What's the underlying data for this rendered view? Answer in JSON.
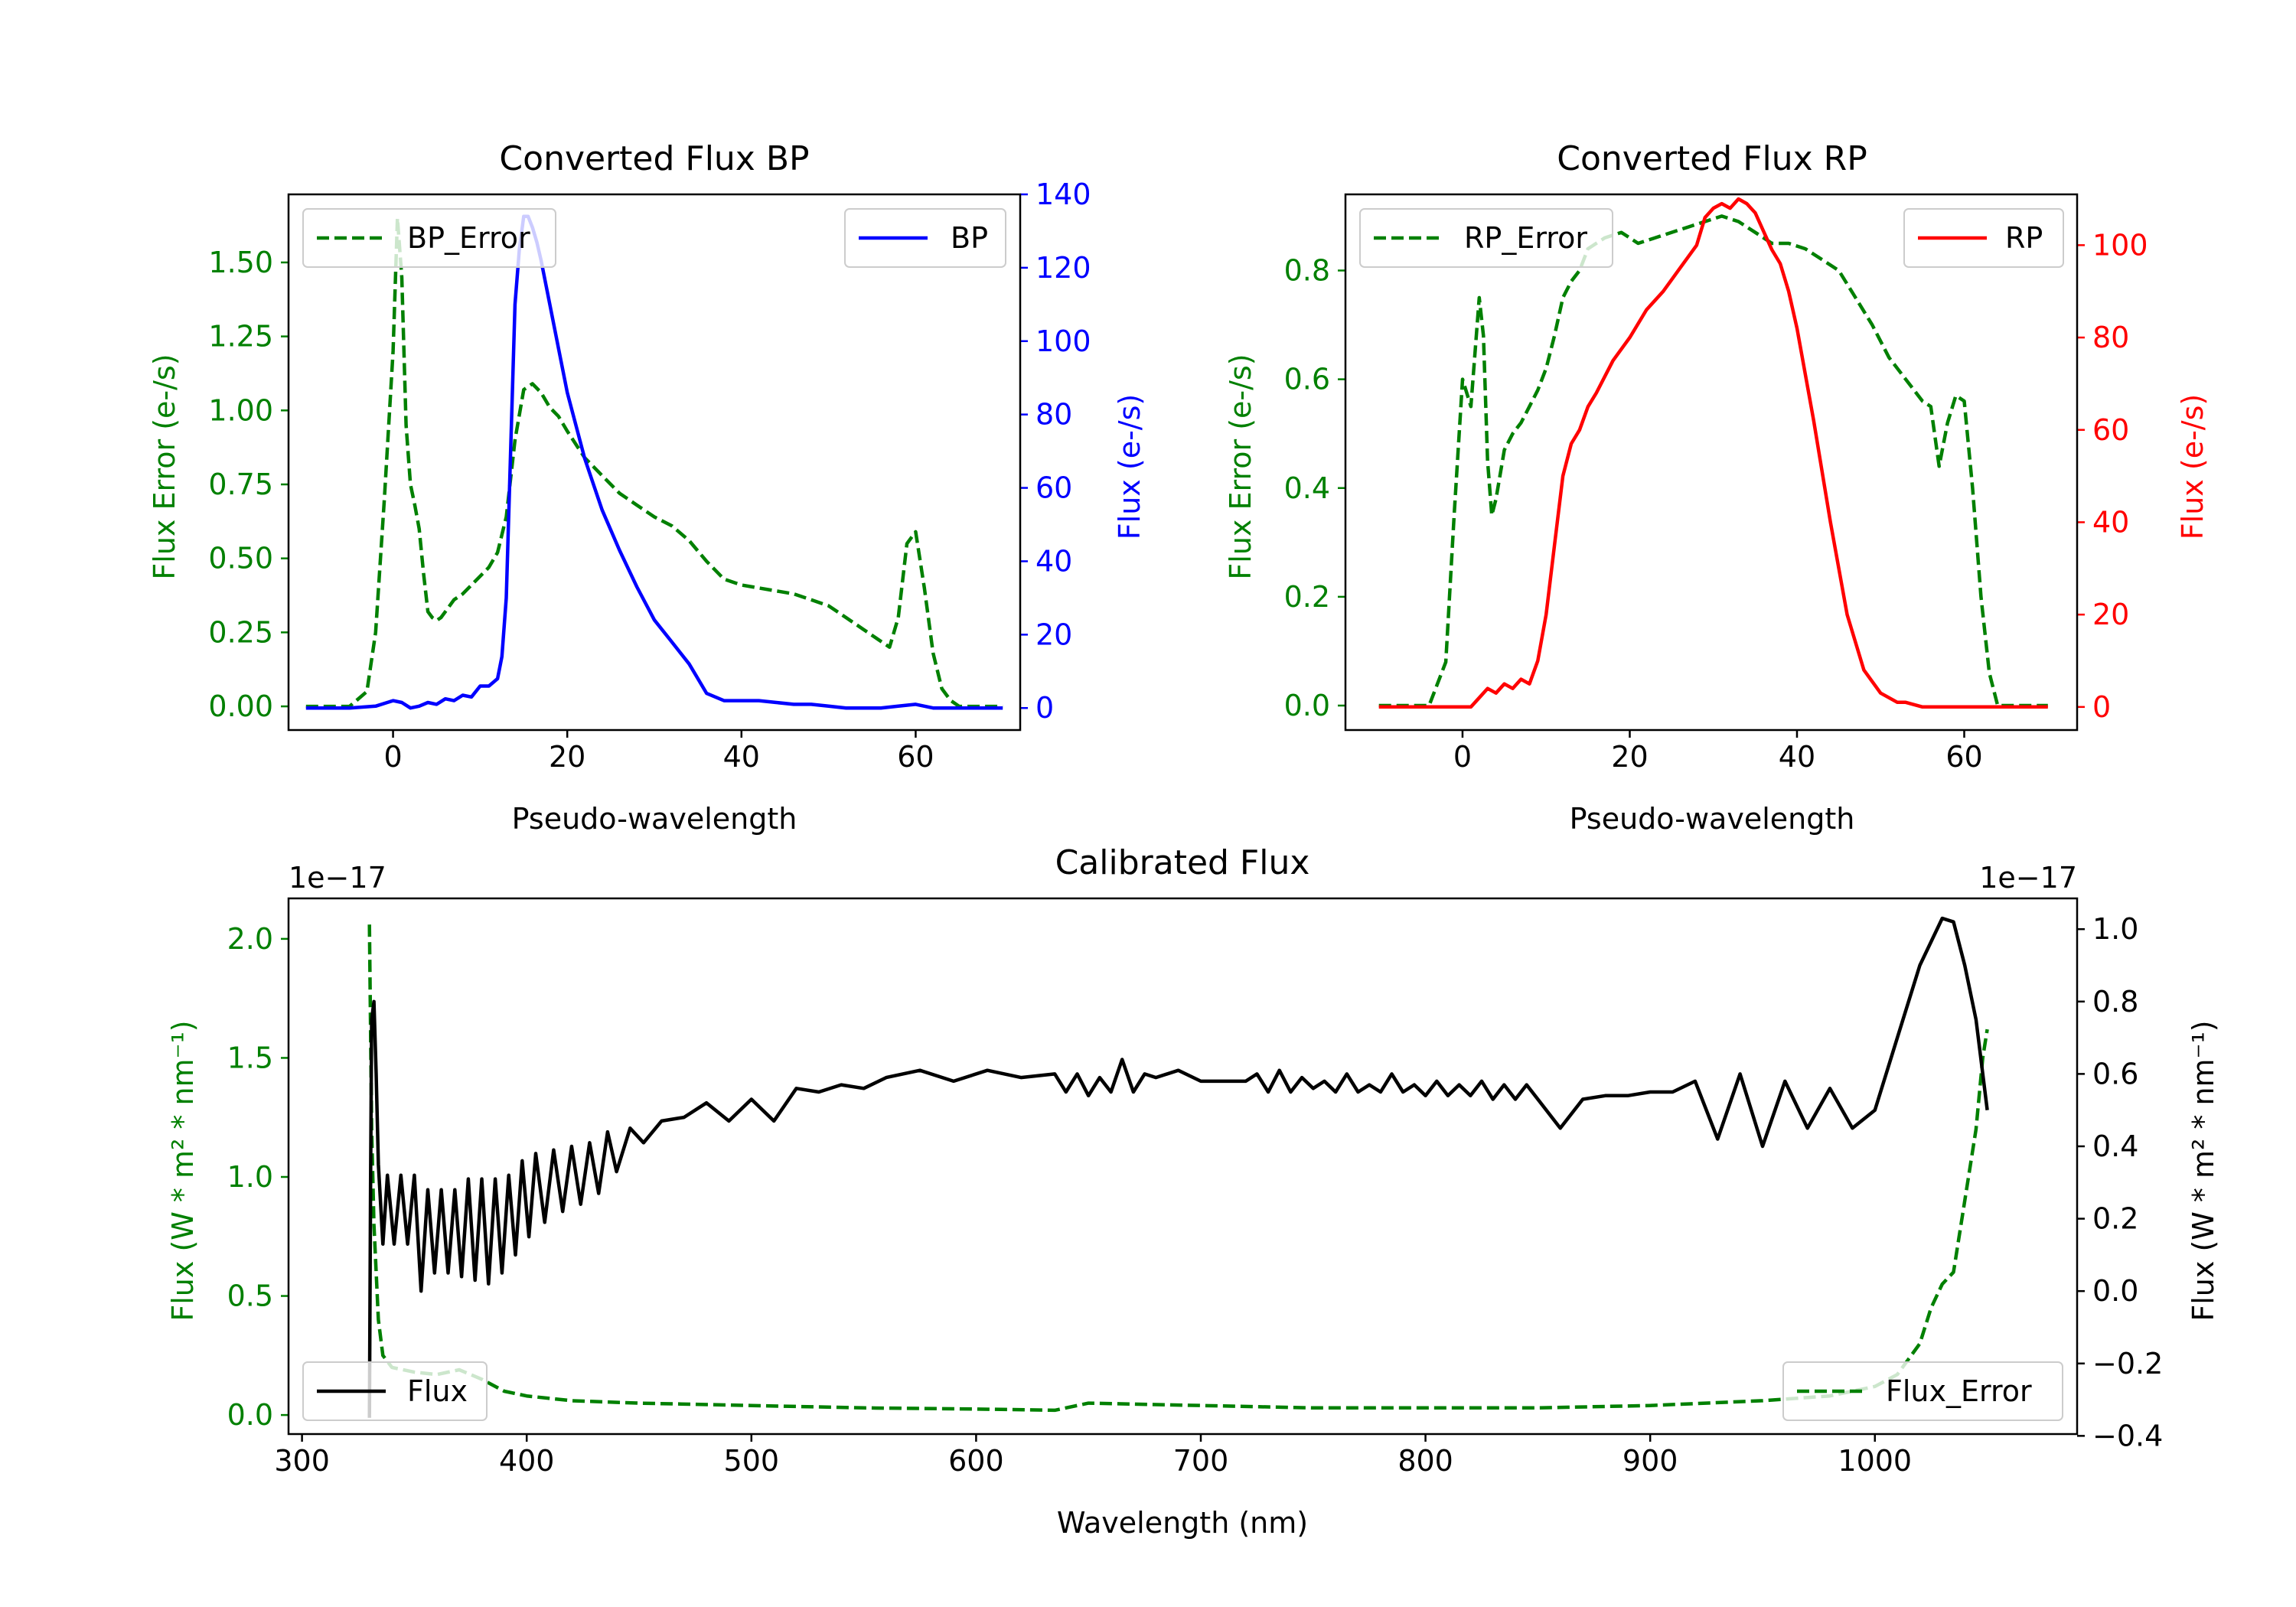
{
  "chart_data": [
    {
      "id": "bp",
      "type": "line",
      "title": "Converted Flux BP",
      "xlabel": "Pseudo-wavelength",
      "ylabel_left": "Flux Error (e-/s)",
      "ylabel_right": "Flux (e-/s)",
      "xlim": [
        -12,
        72
      ],
      "ylim_left": [
        -0.08,
        1.73
      ],
      "ylim_right": [
        -6,
        140
      ],
      "xticks": [
        0,
        20,
        40,
        60
      ],
      "yticks_left": [
        0.0,
        0.25,
        0.5,
        0.75,
        1.0,
        1.25,
        1.5
      ],
      "yticks_left_labels": [
        "0.00",
        "0.25",
        "0.50",
        "0.75",
        "1.00",
        "1.25",
        "1.50"
      ],
      "yticks_right": [
        0,
        20,
        40,
        60,
        80,
        100,
        120,
        140
      ],
      "legend_left": {
        "label": "BP_Error",
        "position": "upper left"
      },
      "legend_right": {
        "label": "BP",
        "position": "upper right"
      },
      "colors": {
        "error": "#008000",
        "flux": "#0000ff",
        "left_axis": "#008000",
        "right_axis": "#0000ff"
      },
      "series": [
        {
          "name": "BP_Error",
          "axis": "left",
          "style": "dashed",
          "x": [
            -10,
            -5,
            -3,
            -2,
            -1,
            0,
            0.5,
            1,
            1.5,
            2,
            2.5,
            3,
            3.5,
            4,
            4.5,
            5,
            5.5,
            6,
            7,
            8,
            9,
            10,
            11,
            12,
            13,
            14,
            15,
            16,
            17,
            18,
            19,
            20,
            22,
            24,
            26,
            28,
            30,
            32,
            34,
            36,
            38,
            40,
            42,
            44,
            46,
            48,
            50,
            52,
            54,
            56,
            57,
            58,
            59,
            60,
            61,
            62,
            63,
            64,
            65,
            70
          ],
          "y": [
            0,
            0,
            0.05,
            0.25,
            0.7,
            1.2,
            1.65,
            1.45,
            0.95,
            0.75,
            0.68,
            0.6,
            0.45,
            0.32,
            0.3,
            0.29,
            0.3,
            0.32,
            0.36,
            0.38,
            0.41,
            0.44,
            0.47,
            0.52,
            0.64,
            0.9,
            1.07,
            1.09,
            1.06,
            1.01,
            0.98,
            0.93,
            0.84,
            0.78,
            0.72,
            0.68,
            0.64,
            0.61,
            0.56,
            0.49,
            0.43,
            0.41,
            0.4,
            0.39,
            0.38,
            0.36,
            0.34,
            0.3,
            0.26,
            0.22,
            0.2,
            0.3,
            0.55,
            0.59,
            0.4,
            0.18,
            0.06,
            0.02,
            0.0,
            0
          ]
        },
        {
          "name": "BP",
          "axis": "right",
          "style": "solid",
          "x": [
            -10,
            -5,
            -2,
            0,
            1,
            2,
            3,
            4,
            5,
            6,
            7,
            8,
            9,
            10,
            11,
            12,
            12.5,
            13,
            13.5,
            14,
            14.5,
            15,
            15.5,
            16,
            16.5,
            17,
            18,
            19,
            20,
            22,
            24,
            26,
            28,
            30,
            32,
            34,
            36,
            38,
            40,
            42,
            44,
            46,
            48,
            50,
            52,
            54,
            56,
            58,
            60,
            62,
            64,
            66,
            70
          ],
          "y": [
            0,
            0,
            0.5,
            2,
            1.5,
            0,
            0.5,
            1.5,
            1,
            2.5,
            2,
            3.5,
            3,
            6,
            6,
            8,
            14,
            30,
            70,
            110,
            125,
            134,
            134,
            131,
            127,
            122,
            110,
            98,
            86,
            68,
            54,
            43,
            33,
            24,
            18,
            12,
            4,
            2,
            2,
            2,
            1.5,
            1,
            1,
            0.5,
            0,
            0,
            0,
            0.5,
            1,
            0,
            0,
            0,
            0
          ]
        }
      ]
    },
    {
      "id": "rp",
      "type": "line",
      "title": "Converted Flux RP",
      "xlabel": "Pseudo-wavelength",
      "ylabel_left": "Flux Error (e-/s)",
      "ylabel_right": "Flux (e-/s)",
      "xlim": [
        -14,
        73.5
      ],
      "ylim_left": [
        -0.045,
        0.94
      ],
      "ylim_right": [
        -5,
        111
      ],
      "xticks": [
        0,
        20,
        40,
        60
      ],
      "yticks_left": [
        0.0,
        0.2,
        0.4,
        0.6,
        0.8
      ],
      "yticks_left_labels": [
        "0.0",
        "0.2",
        "0.4",
        "0.6",
        "0.8"
      ],
      "yticks_right": [
        0,
        20,
        40,
        60,
        80,
        100
      ],
      "legend_left": {
        "label": "RP_Error",
        "position": "upper left"
      },
      "legend_right": {
        "label": "RP",
        "position": "upper right"
      },
      "colors": {
        "error": "#008000",
        "flux": "#ff0000",
        "left_axis": "#008000",
        "right_axis": "#ff0000"
      },
      "series": [
        {
          "name": "RP_Error",
          "axis": "left",
          "style": "dashed",
          "x": [
            -10,
            -4,
            -2,
            -1,
            0,
            1,
            2,
            2.5,
            3,
            3.5,
            4,
            5,
            6,
            7,
            8,
            9,
            10,
            11,
            12,
            13,
            14,
            15,
            17,
            19,
            21,
            23,
            25,
            27,
            29,
            31,
            33,
            35,
            37,
            39,
            41,
            43,
            45,
            47,
            49,
            51,
            53,
            55,
            56,
            57,
            58,
            59,
            60,
            61,
            62,
            63,
            64,
            70
          ],
          "y": [
            0,
            0,
            0.08,
            0.35,
            0.6,
            0.55,
            0.75,
            0.68,
            0.45,
            0.35,
            0.38,
            0.47,
            0.5,
            0.52,
            0.55,
            0.58,
            0.62,
            0.68,
            0.75,
            0.78,
            0.8,
            0.84,
            0.86,
            0.87,
            0.85,
            0.86,
            0.87,
            0.88,
            0.89,
            0.9,
            0.89,
            0.87,
            0.85,
            0.85,
            0.84,
            0.82,
            0.8,
            0.75,
            0.7,
            0.64,
            0.6,
            0.56,
            0.55,
            0.44,
            0.52,
            0.57,
            0.56,
            0.4,
            0.2,
            0.06,
            0.0,
            0
          ]
        },
        {
          "name": "RP",
          "axis": "right",
          "style": "solid",
          "x": [
            -10,
            -2,
            0,
            1,
            2,
            3,
            4,
            5,
            6,
            7,
            8,
            9,
            10,
            11,
            12,
            13,
            14,
            15,
            16,
            18,
            20,
            22,
            24,
            26,
            28,
            29,
            30,
            31,
            32,
            33,
            34,
            35,
            36,
            37,
            38,
            39,
            40,
            42,
            44,
            46,
            48,
            50,
            52,
            53,
            54,
            55,
            56,
            57,
            58,
            59,
            60,
            62,
            70
          ],
          "y": [
            0,
            0,
            0,
            0,
            2,
            4,
            3,
            5,
            4,
            6,
            5,
            10,
            20,
            35,
            50,
            57,
            60,
            65,
            68,
            75,
            80,
            86,
            90,
            95,
            100,
            106,
            108,
            109,
            108,
            110,
            109,
            107,
            103,
            99,
            96,
            90,
            82,
            62,
            40,
            20,
            8,
            3,
            1,
            1,
            0.5,
            0,
            0,
            0,
            0,
            0,
            0,
            0,
            0
          ]
        }
      ]
    },
    {
      "id": "cal",
      "type": "line",
      "title": "Calibrated Flux",
      "xlabel": "Wavelength (nm)",
      "ylabel_left": "Flux (W * m² * nm⁻¹)",
      "ylabel_right": "Flux (W * m² * nm⁻¹)",
      "offset_left": "1e−17",
      "offset_right": "1e−17",
      "xlim": [
        294,
        1090
      ],
      "ylim_left": [
        -0.08,
        2.17
      ],
      "ylim_right": [
        -0.395,
        1.085
      ],
      "xticks": [
        300,
        400,
        500,
        600,
        700,
        800,
        900,
        1000
      ],
      "yticks_left": [
        0.0,
        0.5,
        1.0,
        1.5,
        2.0
      ],
      "yticks_left_labels": [
        "0.0",
        "0.5",
        "1.0",
        "1.5",
        "2.0"
      ],
      "yticks_right": [
        -0.4,
        -0.2,
        0.0,
        0.2,
        0.4,
        0.6,
        0.8,
        1.0
      ],
      "yticks_right_labels": [
        "−0.4",
        "−0.2",
        "0.0",
        "0.2",
        "0.4",
        "0.6",
        "0.8",
        "1.0"
      ],
      "legend_left": {
        "label": "Flux",
        "position": "lower left"
      },
      "legend_right": {
        "label": "Flux_Error",
        "position": "lower right"
      },
      "colors": {
        "error": "#008000",
        "flux": "#000000",
        "left_axis": "#008000",
        "right_axis": "#000000"
      },
      "series": [
        {
          "name": "Flux_Error",
          "axis": "left",
          "style": "dashed",
          "x": [
            330,
            331,
            332,
            334,
            336,
            340,
            350,
            360,
            370,
            380,
            390,
            400,
            420,
            450,
            500,
            550,
            600,
            635,
            650,
            700,
            750,
            800,
            850,
            900,
            950,
            980,
            1000,
            1010,
            1020,
            1025,
            1030,
            1035,
            1040,
            1045,
            1048,
            1050
          ],
          "y": [
            2.06,
            1.2,
            0.8,
            0.4,
            0.25,
            0.2,
            0.18,
            0.17,
            0.19,
            0.15,
            0.1,
            0.08,
            0.06,
            0.05,
            0.04,
            0.03,
            0.025,
            0.02,
            0.05,
            0.04,
            0.03,
            0.03,
            0.03,
            0.04,
            0.06,
            0.08,
            0.12,
            0.17,
            0.3,
            0.45,
            0.55,
            0.6,
            0.9,
            1.2,
            1.5,
            1.62
          ]
        },
        {
          "name": "Flux",
          "axis": "right",
          "style": "solid",
          "x": [
            330,
            330.5,
            331,
            332,
            333,
            334,
            336,
            338,
            341,
            344,
            347,
            350,
            353,
            356,
            359,
            362,
            365,
            368,
            371,
            374,
            377,
            380,
            383,
            386,
            389,
            392,
            395,
            398,
            401,
            404,
            408,
            412,
            416,
            420,
            424,
            428,
            432,
            436,
            440,
            446,
            452,
            460,
            470,
            480,
            490,
            500,
            510,
            520,
            530,
            540,
            550,
            560,
            575,
            590,
            605,
            620,
            635,
            640,
            645,
            650,
            655,
            660,
            665,
            670,
            675,
            680,
            690,
            700,
            710,
            720,
            725,
            730,
            735,
            740,
            745,
            750,
            755,
            760,
            765,
            770,
            775,
            780,
            785,
            790,
            795,
            800,
            805,
            810,
            815,
            820,
            825,
            830,
            835,
            840,
            845,
            850,
            860,
            870,
            880,
            890,
            900,
            910,
            920,
            930,
            940,
            950,
            960,
            970,
            980,
            990,
            1000,
            1010,
            1020,
            1030,
            1035,
            1040,
            1045,
            1050
          ],
          "y": [
            -0.35,
            0.3,
            0.75,
            0.8,
            0.6,
            0.35,
            0.13,
            0.32,
            0.13,
            0.32,
            0.13,
            0.32,
            0.0,
            0.28,
            0.05,
            0.28,
            0.05,
            0.28,
            0.04,
            0.31,
            0.03,
            0.31,
            0.02,
            0.31,
            0.05,
            0.32,
            0.1,
            0.36,
            0.15,
            0.38,
            0.19,
            0.39,
            0.22,
            0.4,
            0.24,
            0.41,
            0.27,
            0.44,
            0.33,
            0.45,
            0.41,
            0.47,
            0.48,
            0.52,
            0.47,
            0.53,
            0.47,
            0.56,
            0.55,
            0.57,
            0.56,
            0.59,
            0.61,
            0.58,
            0.61,
            0.59,
            0.6,
            0.55,
            0.6,
            0.54,
            0.59,
            0.55,
            0.64,
            0.55,
            0.6,
            0.59,
            0.61,
            0.58,
            0.58,
            0.58,
            0.6,
            0.55,
            0.61,
            0.55,
            0.59,
            0.56,
            0.58,
            0.55,
            0.6,
            0.55,
            0.57,
            0.55,
            0.6,
            0.55,
            0.57,
            0.54,
            0.58,
            0.54,
            0.57,
            0.54,
            0.58,
            0.53,
            0.57,
            0.53,
            0.57,
            0.53,
            0.45,
            0.53,
            0.54,
            0.54,
            0.55,
            0.55,
            0.58,
            0.42,
            0.6,
            0.4,
            0.58,
            0.45,
            0.56,
            0.45,
            0.5,
            0.7,
            0.9,
            1.03,
            1.02,
            0.9,
            0.75,
            0.5
          ]
        }
      ]
    }
  ]
}
